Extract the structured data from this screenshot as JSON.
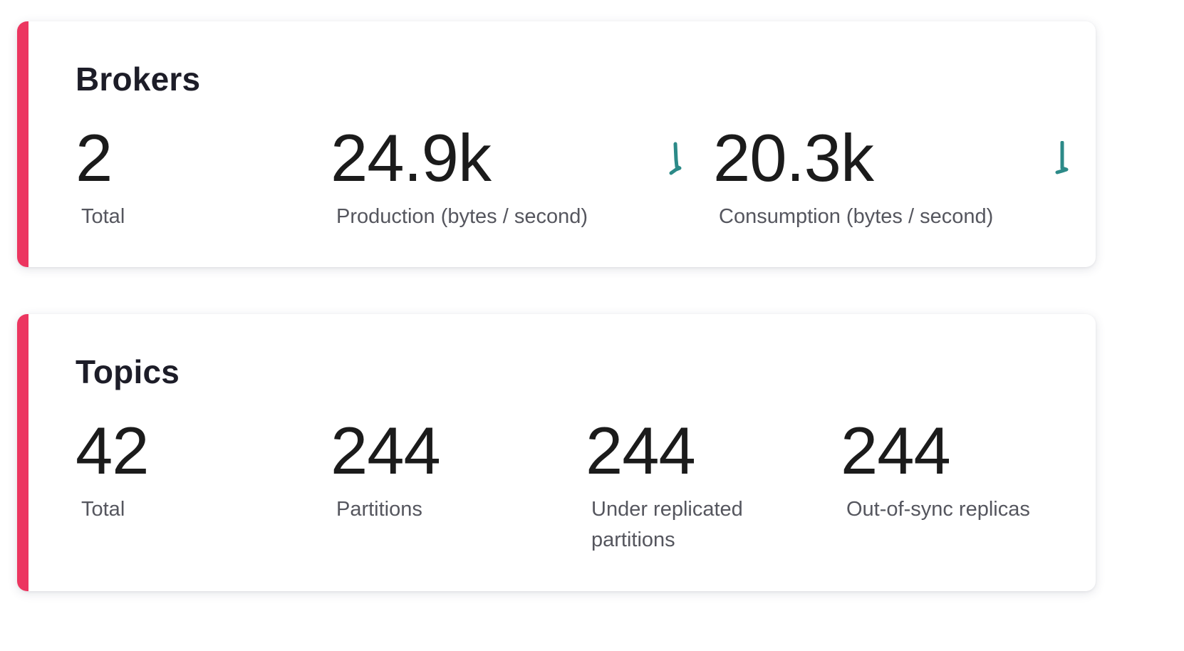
{
  "theme": {
    "accent": "#ec3660",
    "sparkline": "#2c8a88"
  },
  "brokers": {
    "title": "Brokers",
    "total": {
      "value": "2",
      "label": "Total"
    },
    "production": {
      "value": "24.9k",
      "label": "Production (bytes / second)",
      "sparkline_icon": "sparkline-icon"
    },
    "consumption": {
      "value": "20.3k",
      "label": "Consumption (bytes / second)",
      "sparkline_icon": "sparkline-icon"
    }
  },
  "topics": {
    "title": "Topics",
    "total": {
      "value": "42",
      "label": "Total"
    },
    "partitions": {
      "value": "244",
      "label": "Partitions"
    },
    "under_replicated": {
      "value": "244",
      "label": "Under replicated partitions"
    },
    "out_of_sync": {
      "value": "244",
      "label": "Out-of-sync replicas"
    }
  }
}
